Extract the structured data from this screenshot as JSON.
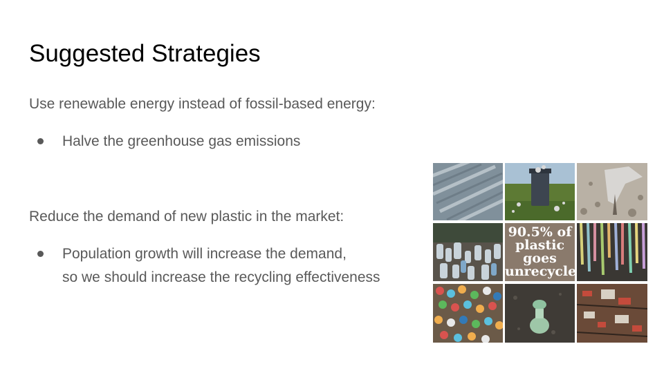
{
  "slide": {
    "title": "Suggested Strategies",
    "sections": [
      {
        "heading": "Use renewable energy instead of fossil-based energy:",
        "bullets": [
          {
            "lines": [
              "Halve the greenhouse gas emissions"
            ]
          }
        ]
      },
      {
        "heading": "Reduce the demand of new plastic in the market:",
        "bullets": [
          {
            "lines": [
              "Population growth will increase the demand,",
              "so we should increase the recycling effectiveness"
            ]
          }
        ]
      }
    ],
    "collage": {
      "caption_lines": [
        "90.5% of",
        "plastic",
        "goes",
        "unrecycled"
      ],
      "colors": {
        "caption_bg": "#8a7a6c",
        "sea_blue": "#6f8595",
        "grass_green": "#5d7a34",
        "sand": "#b9b1a5",
        "dark_ground": "#3f3b36"
      }
    }
  }
}
